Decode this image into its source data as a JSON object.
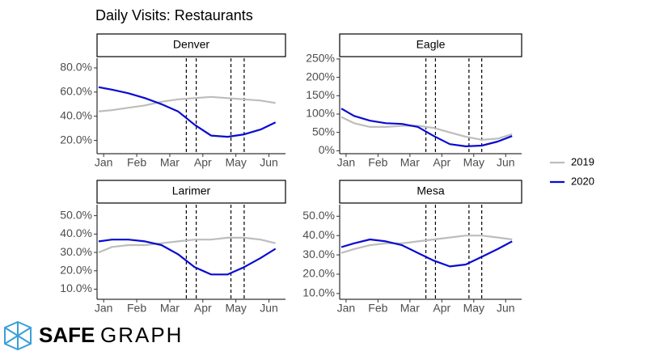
{
  "title": "Daily Visits: Restaurants",
  "logo": {
    "part1": "SAFE",
    "part2": "GRAPH"
  },
  "chart_data": [
    {
      "type": "line",
      "title": "Denver",
      "x": [
        -0.15,
        0.25,
        0.75,
        1.25,
        1.75,
        2.25,
        2.75,
        3.25,
        3.75,
        4.25,
        4.75,
        5.2
      ],
      "series": [
        {
          "name": "2019",
          "color": "#bdbdbd",
          "values": [
            44,
            45,
            47,
            49,
            52,
            54,
            55,
            56,
            55,
            54,
            53,
            51
          ]
        },
        {
          "name": "2020",
          "color": "#0a0ad2",
          "values": [
            64,
            62,
            59,
            55,
            50,
            44,
            33,
            24,
            23,
            25,
            29,
            35
          ]
        }
      ],
      "xlim": [
        -0.2,
        5.5
      ],
      "xticks": [
        {
          "value": 0,
          "label": "Jan"
        },
        {
          "value": 1,
          "label": "Feb"
        },
        {
          "value": 2,
          "label": "Mar"
        },
        {
          "value": 3,
          "label": "Apr"
        },
        {
          "value": 4,
          "label": "May"
        },
        {
          "value": 5,
          "label": "Jun"
        }
      ],
      "ylim": [
        9,
        88
      ],
      "yticks": [
        {
          "value": 20,
          "label": "20.0%"
        },
        {
          "value": 40,
          "label": "40.0%"
        },
        {
          "value": 60,
          "label": "60.0%"
        },
        {
          "value": 80,
          "label": "80.0%"
        }
      ],
      "vlines": [
        2.5,
        2.8,
        3.85,
        4.25
      ]
    },
    {
      "type": "line",
      "title": "Eagle",
      "x": [
        -0.15,
        0.25,
        0.75,
        1.25,
        1.75,
        2.25,
        2.75,
        3.25,
        3.75,
        4.25,
        4.75,
        5.2
      ],
      "series": [
        {
          "color": "#bdbdbd",
          "values": [
            92,
            75,
            65,
            65,
            68,
            68,
            62,
            50,
            38,
            30,
            33,
            45
          ]
        },
        {
          "color": "#0a0ad2",
          "values": [
            115,
            95,
            82,
            75,
            73,
            65,
            40,
            18,
            12,
            14,
            25,
            40
          ]
        }
      ],
      "xlim": [
        -0.2,
        5.5
      ],
      "xticks": [
        {
          "value": 0,
          "label": "Jan"
        },
        {
          "value": 1,
          "label": "Feb"
        },
        {
          "value": 2,
          "label": "Mar"
        },
        {
          "value": 3,
          "label": "Apr"
        },
        {
          "value": 4,
          "label": "May"
        },
        {
          "value": 5,
          "label": "Jun"
        }
      ],
      "ylim": [
        -8,
        252
      ],
      "yticks": [
        {
          "value": 0,
          "label": "0%"
        },
        {
          "value": 50,
          "label": "50%"
        },
        {
          "value": 100,
          "label": "100%"
        },
        {
          "value": 150,
          "label": "150%"
        },
        {
          "value": 200,
          "label": "200%"
        },
        {
          "value": 250,
          "label": "250%"
        }
      ],
      "vlines": [
        2.5,
        2.8,
        3.85,
        4.25
      ]
    },
    {
      "type": "line",
      "title": "Larimer",
      "x": [
        -0.15,
        0.25,
        0.75,
        1.25,
        1.75,
        2.25,
        2.75,
        3.25,
        3.75,
        4.25,
        4.75,
        5.2
      ],
      "series": [
        {
          "color": "#bdbdbd",
          "values": [
            30,
            33,
            34,
            34,
            35,
            36,
            37,
            37,
            38,
            38,
            37,
            35
          ]
        },
        {
          "color": "#0a0ad2",
          "values": [
            36,
            37,
            37,
            36,
            34,
            29,
            22,
            18,
            18,
            22,
            27,
            32
          ]
        }
      ],
      "xlim": [
        -0.2,
        5.5
      ],
      "xticks": [
        {
          "value": 0,
          "label": "Jan"
        },
        {
          "value": 1,
          "label": "Feb"
        },
        {
          "value": 2,
          "label": "Mar"
        },
        {
          "value": 3,
          "label": "Apr"
        },
        {
          "value": 4,
          "label": "May"
        },
        {
          "value": 5,
          "label": "Jun"
        }
      ],
      "ylim": [
        4.5,
        56
      ],
      "yticks": [
        {
          "value": 10,
          "label": "10.0%"
        },
        {
          "value": 20,
          "label": "20.0%"
        },
        {
          "value": 30,
          "label": "30.0%"
        },
        {
          "value": 40,
          "label": "40.0%"
        },
        {
          "value": 50,
          "label": "50.0%"
        }
      ],
      "vlines": [
        2.5,
        2.8,
        3.85,
        4.25
      ]
    },
    {
      "type": "line",
      "title": "Mesa",
      "x": [
        -0.15,
        0.25,
        0.75,
        1.25,
        1.75,
        2.25,
        2.75,
        3.25,
        3.75,
        4.25,
        4.75,
        5.2
      ],
      "series": [
        {
          "color": "#bdbdbd",
          "values": [
            31,
            33,
            35,
            36,
            36,
            37,
            38,
            39,
            40,
            40,
            39,
            38
          ]
        },
        {
          "color": "#0a0ad2",
          "values": [
            34,
            36,
            38,
            37,
            35,
            31,
            27,
            24,
            25,
            29,
            33,
            37
          ]
        }
      ],
      "xlim": [
        -0.2,
        5.5
      ],
      "xticks": [
        {
          "value": 0,
          "label": "Jan"
        },
        {
          "value": 1,
          "label": "Feb"
        },
        {
          "value": 2,
          "label": "Mar"
        },
        {
          "value": 3,
          "label": "Apr"
        },
        {
          "value": 4,
          "label": "May"
        },
        {
          "value": 5,
          "label": "Jun"
        }
      ],
      "ylim": [
        7,
        56
      ],
      "yticks": [
        {
          "value": 10,
          "label": "10.0%"
        },
        {
          "value": 20,
          "label": "20.0%"
        },
        {
          "value": 30,
          "label": "30.0%"
        },
        {
          "value": 40,
          "label": "40.0%"
        },
        {
          "value": 50,
          "label": "50.0%"
        }
      ],
      "vlines": [
        2.5,
        2.8,
        3.85,
        4.25
      ]
    }
  ]
}
